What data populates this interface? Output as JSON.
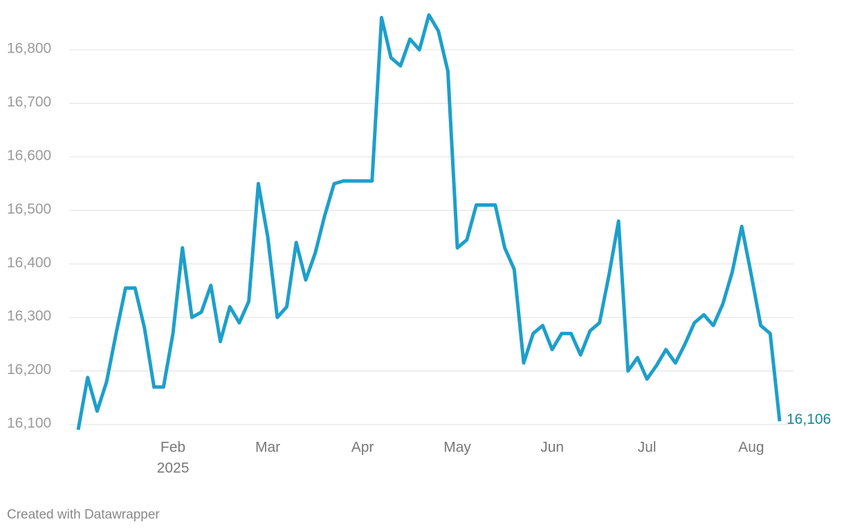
{
  "chart_data": {
    "type": "line",
    "categories": [
      null,
      null,
      null,
      null,
      null,
      null,
      null,
      null,
      null,
      null,
      "Feb",
      null,
      null,
      null,
      null,
      null,
      null,
      null,
      null,
      null,
      "Mar",
      null,
      null,
      null,
      null,
      null,
      null,
      null,
      null,
      null,
      "Apr",
      null,
      null,
      null,
      null,
      null,
      null,
      null,
      null,
      null,
      "May",
      null,
      null,
      null,
      null,
      null,
      null,
      null,
      null,
      null,
      "Jun",
      null,
      null,
      null,
      null,
      null,
      null,
      null,
      null,
      null,
      "Jul",
      null,
      null,
      null,
      null,
      null,
      null,
      null,
      null,
      null,
      null,
      "Aug",
      null,
      null,
      null
    ],
    "x_year_label": "2025",
    "series": [
      {
        "color": "#1d9fcb",
        "values": [
          16090,
          16188,
          16125,
          16180,
          16270,
          16355,
          16355,
          16280,
          16170,
          16170,
          16270,
          16430,
          16300,
          16310,
          16360,
          16255,
          16320,
          16290,
          16330,
          16550,
          16450,
          16300,
          16320,
          16440,
          16370,
          16420,
          16490,
          16550,
          16555,
          16555,
          16555,
          16555,
          16860,
          16785,
          16770,
          16820,
          16800,
          16865,
          16835,
          16760,
          16430,
          16445,
          16510,
          16510,
          16510,
          16430,
          16390,
          16215,
          16270,
          16285,
          16240,
          16270,
          16270,
          16230,
          16275,
          16290,
          16380,
          16480,
          16200,
          16225,
          16185,
          16210,
          16240,
          16215,
          16250,
          16290,
          16305,
          16285,
          16325,
          16385,
          16470,
          16380,
          16285,
          16270,
          16106
        ],
        "value_labels": [
          null,
          null,
          null,
          null,
          null,
          null,
          null,
          null,
          null,
          null,
          null,
          null,
          null,
          null,
          null,
          null,
          null,
          null,
          null,
          null,
          null,
          null,
          null,
          null,
          null,
          null,
          null,
          null,
          null,
          null,
          null,
          null,
          null,
          null,
          null,
          null,
          null,
          null,
          null,
          null,
          null,
          null,
          null,
          null,
          null,
          null,
          null,
          null,
          null,
          null,
          null,
          null,
          null,
          null,
          null,
          null,
          null,
          null,
          null,
          null,
          null,
          null,
          null,
          null,
          null,
          null,
          null,
          null,
          null,
          null,
          null,
          null,
          null,
          null,
          "16,106"
        ]
      }
    ],
    "ylim": [
      16100,
      16800
    ],
    "yticks": [
      {
        "value": 16100,
        "label": "16,100"
      },
      {
        "value": 16200,
        "label": "16,200"
      },
      {
        "value": 16300,
        "label": "16,300"
      },
      {
        "value": 16400,
        "label": "16,400"
      },
      {
        "value": 16500,
        "label": "16,500"
      },
      {
        "value": 16600,
        "label": "16,600"
      },
      {
        "value": 16700,
        "label": "16,700"
      },
      {
        "value": 16800,
        "label": "16,800"
      }
    ],
    "grid": true,
    "footer": "Created with Datawrapper"
  }
}
